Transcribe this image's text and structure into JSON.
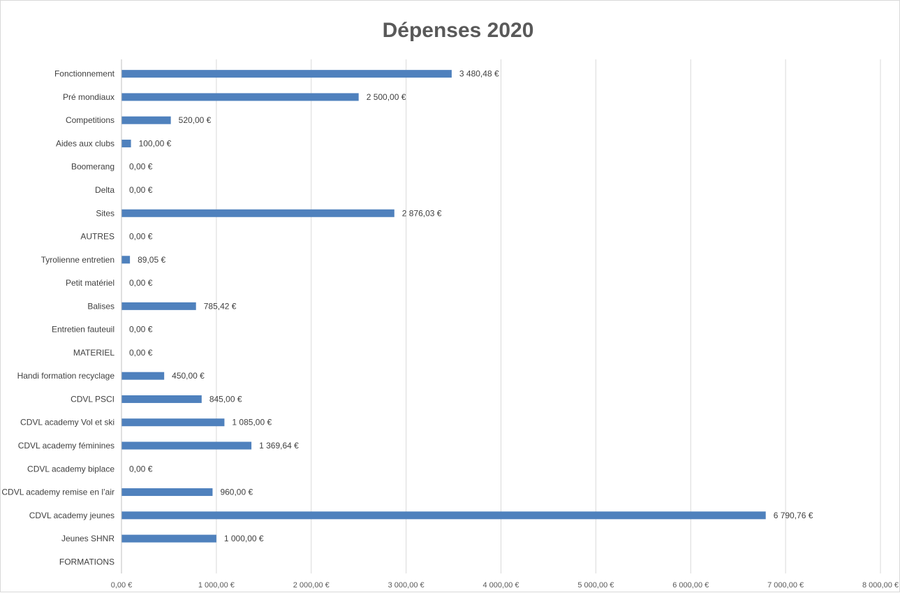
{
  "chart_data": {
    "type": "bar",
    "orientation": "horizontal",
    "title": "Dépenses 2020",
    "xlabel": "",
    "ylabel": "",
    "xlim": [
      0,
      8000
    ],
    "grid": true,
    "legend": "none",
    "bar_color": "#4f81bd",
    "categories": [
      "Fonctionnement",
      "Pré mondiaux",
      "Competitions",
      "Aides aux clubs",
      "Boomerang",
      "Delta",
      "Sites",
      "AUTRES",
      "Tyrolienne entretien",
      "Petit matériel",
      "Balises",
      "Entretien fauteuil",
      "MATERIEL",
      "Handi formation recyclage",
      "CDVL PSCI",
      "CDVL academy Vol et ski",
      "CDVL academy féminines",
      "CDVL academy biplace",
      "CDVL academy remise en l’air",
      "CDVL academy jeunes",
      "Jeunes SHNR",
      "FORMATIONS"
    ],
    "values": [
      3480.48,
      2500,
      520,
      100,
      0,
      0,
      2876.03,
      0,
      89.05,
      0,
      785.42,
      0,
      0,
      450,
      845,
      1085,
      1369.64,
      0,
      960,
      6790.76,
      1000,
      null
    ],
    "value_labels": [
      "3 480,48 €",
      "2 500,00 €",
      "520,00 €",
      "100,00 €",
      "0,00 €",
      "0,00 €",
      "2 876,03 €",
      "0,00 €",
      "89,05 €",
      "0,00 €",
      "785,42 €",
      "0,00 €",
      "0,00 €",
      "450,00 €",
      "845,00 €",
      "1 085,00 €",
      "1 369,64 €",
      "0,00 €",
      "960,00 €",
      "6 790,76 €",
      "1 000,00 €",
      ""
    ],
    "ticks": [
      0,
      1000,
      2000,
      3000,
      4000,
      5000,
      6000,
      7000,
      8000
    ],
    "tick_labels": [
      "0,00 €",
      "1 000,00 €",
      "2 000,00 €",
      "3 000,00 €",
      "4 000,00 €",
      "5 000,00 €",
      "6 000,00 €",
      "7 000,00 €",
      "8 000,00 €"
    ]
  }
}
